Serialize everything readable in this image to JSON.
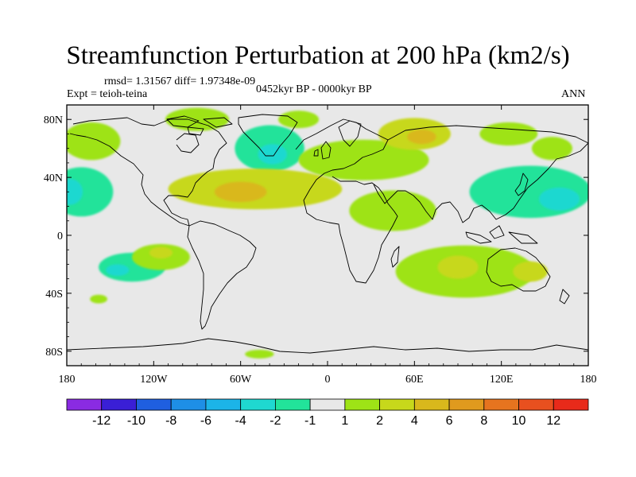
{
  "title": "Streamfunction Perturbation at 200 hPa (km2/s)",
  "stats": "rmsd= 1.31567 diff= 1.97348e-09",
  "experiment": "Expt = teioh-teina",
  "period": "0452kyr BP - 0000kyr BP",
  "season": "ANN",
  "chart_data": {
    "type": "contour-map",
    "projection": "cylindrical-equidistant",
    "variable": "Streamfunction Perturbation at 200 hPa",
    "units": "km2/s",
    "x_ticks": [
      "180",
      "120W",
      "60W",
      "0",
      "60E",
      "120E",
      "180"
    ],
    "x_tick_lons": [
      -180,
      -120,
      -60,
      0,
      60,
      120,
      180
    ],
    "y_ticks": [
      "80N",
      "40N",
      "0",
      "40S",
      "80S"
    ],
    "y_tick_lats": [
      80,
      40,
      0,
      -40,
      -80
    ],
    "lon_range": [
      -180,
      180
    ],
    "lat_range": [
      -90,
      90
    ],
    "colorbar": {
      "levels": [
        -12,
        -10,
        -8,
        -6,
        -4,
        -2,
        -1,
        1,
        2,
        4,
        6,
        8,
        10,
        12
      ],
      "labels": [
        "-12",
        "-10",
        "-8",
        "-6",
        "-4",
        "-2",
        "-1",
        "1",
        "2",
        "4",
        "6",
        "8",
        "10",
        "12"
      ],
      "colors": [
        "#8a2be2",
        "#3a1fd6",
        "#1f5fe0",
        "#1e8fe6",
        "#1cb4e8",
        "#1fd8d0",
        "#22e39a",
        "#e8e8e8",
        "#9ee316",
        "#c7d81b",
        "#d9b81c",
        "#e09a1e",
        "#e6741f",
        "#e8501f",
        "#e82a1a"
      ]
    },
    "anomalies": [
      {
        "lon": -163,
        "lat": 65,
        "value": 1,
        "rx": 20,
        "ry": 13
      },
      {
        "lon": -90,
        "lat": 80,
        "value": 1,
        "rx": 22,
        "ry": 8
      },
      {
        "lon": -20,
        "lat": 80,
        "value": 1,
        "rx": 14,
        "ry": 6
      },
      {
        "lon": -40,
        "lat": 60,
        "value": -2,
        "rx": 24,
        "ry": 16
      },
      {
        "lon": -38,
        "lat": 56,
        "value": -4,
        "rx": 10,
        "ry": 7
      },
      {
        "lon": -105,
        "lat": 50,
        "value": -1,
        "rx": 14,
        "ry": 8
      },
      {
        "lon": -170,
        "lat": 30,
        "value": -2,
        "rx": 22,
        "ry": 17
      },
      {
        "lon": -178,
        "lat": 30,
        "value": -4,
        "rx": 9,
        "ry": 9
      },
      {
        "lon": -50,
        "lat": 32,
        "value": 2,
        "rx": 60,
        "ry": 14
      },
      {
        "lon": -60,
        "lat": 30,
        "value": 4,
        "rx": 18,
        "ry": 7
      },
      {
        "lon": 25,
        "lat": 52,
        "value": 1,
        "rx": 45,
        "ry": 14
      },
      {
        "lon": 60,
        "lat": 70,
        "value": 2,
        "rx": 25,
        "ry": 11
      },
      {
        "lon": 65,
        "lat": 68,
        "value": 4,
        "rx": 10,
        "ry": 5
      },
      {
        "lon": 125,
        "lat": 70,
        "value": 1,
        "rx": 20,
        "ry": 8
      },
      {
        "lon": 155,
        "lat": 60,
        "value": 1,
        "rx": 14,
        "ry": 8
      },
      {
        "lon": 45,
        "lat": 17,
        "value": 1,
        "rx": 30,
        "ry": 14
      },
      {
        "lon": 140,
        "lat": 30,
        "value": -2,
        "rx": 42,
        "ry": 18
      },
      {
        "lon": 160,
        "lat": 25,
        "value": -4,
        "rx": 14,
        "ry": 8
      },
      {
        "lon": -115,
        "lat": -15,
        "value": 1,
        "rx": 20,
        "ry": 9
      },
      {
        "lon": -115,
        "lat": -12,
        "value": 2,
        "rx": 8,
        "ry": 4
      },
      {
        "lon": -135,
        "lat": -22,
        "value": -2,
        "rx": 23,
        "ry": 10
      },
      {
        "lon": -145,
        "lat": -24,
        "value": -4,
        "rx": 8,
        "ry": 4
      },
      {
        "lon": -158,
        "lat": -44,
        "value": 1,
        "rx": 6,
        "ry": 3
      },
      {
        "lon": 30,
        "lat": -20,
        "value": -1,
        "rx": 50,
        "ry": 14
      },
      {
        "lon": 95,
        "lat": -25,
        "value": 1,
        "rx": 48,
        "ry": 18
      },
      {
        "lon": 90,
        "lat": -22,
        "value": 2,
        "rx": 14,
        "ry": 8
      },
      {
        "lon": 140,
        "lat": -25,
        "value": 2,
        "rx": 12,
        "ry": 7
      },
      {
        "lon": 150,
        "lat": -47,
        "value": -1,
        "rx": 30,
        "ry": 10
      },
      {
        "lon": -47,
        "lat": -82,
        "value": 1,
        "rx": 10,
        "ry": 3
      }
    ]
  }
}
